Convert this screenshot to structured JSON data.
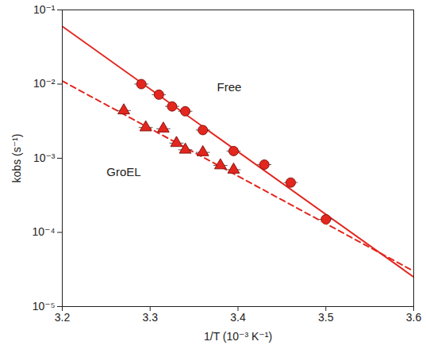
{
  "chart_data": {
    "type": "scatter",
    "x_label": "1/T (10⁻³ K⁻¹)",
    "y_label": "kobs (s⁻¹)",
    "log": "y",
    "grid": false,
    "xlim": [
      3.2,
      3.6
    ],
    "xticks": [
      3.2,
      3.3,
      3.4,
      3.5,
      3.6
    ],
    "ylim": [
      1e-05,
      0.1
    ],
    "yticks": [
      {
        "value": 1e-05,
        "label": "10⁻⁵"
      },
      {
        "value": 0.0001,
        "label": "10⁻⁴"
      },
      {
        "value": 0.001,
        "label": "10⁻³"
      },
      {
        "value": 0.01,
        "label": "10⁻²"
      },
      {
        "value": 0.1,
        "label": "10⁻¹"
      }
    ],
    "series": [
      {
        "name": "Free",
        "color": "#e3261e",
        "marker": "circle",
        "line_style": "solid",
        "x": [
          3.29,
          3.31,
          3.325,
          3.34,
          3.36,
          3.395,
          3.43,
          3.46,
          3.5
        ],
        "values": [
          0.01,
          0.0072,
          0.005,
          0.0043,
          0.0024,
          0.00125,
          0.00082,
          0.00047,
          0.00015
        ],
        "x_error": [
          0.008,
          0.008,
          0.008,
          0.008,
          0.008,
          0.008,
          0.008,
          0.008,
          0.008
        ],
        "fit": {
          "x": [
            3.2,
            3.6
          ],
          "values": [
            0.06,
            2.5e-05
          ]
        }
      },
      {
        "name": "GroEL",
        "color": "#e3261e",
        "marker": "triangle",
        "line_style": "dashed",
        "x": [
          3.27,
          3.295,
          3.315,
          3.33,
          3.34,
          3.36,
          3.38,
          3.395
        ],
        "values": [
          0.0044,
          0.0026,
          0.0025,
          0.0016,
          0.0013,
          0.0012,
          0.0008,
          0.0007
        ],
        "x_error": [
          0.008,
          0.008,
          0.008,
          0.008,
          0.008,
          0.008,
          0.008,
          0.008
        ],
        "fit": {
          "x": [
            3.2,
            3.6
          ],
          "values": [
            0.011,
            3e-05
          ]
        }
      }
    ],
    "annotations": [
      {
        "text": "Free",
        "x": 3.39,
        "y": 0.009
      },
      {
        "text": "GroEL",
        "x": 3.27,
        "y": 0.00065
      }
    ]
  }
}
